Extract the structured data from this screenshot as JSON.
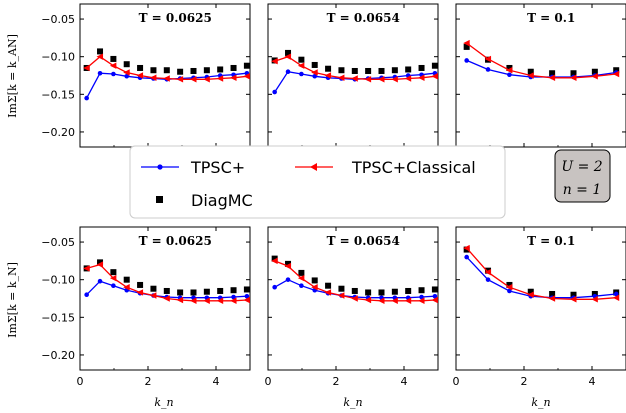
{
  "chart_data": {
    "type": "line",
    "x_shared": [
      0.196,
      0.589,
      0.982,
      1.374,
      1.767,
      2.16,
      2.553,
      2.945,
      3.338,
      3.731,
      4.123,
      4.516,
      4.909
    ],
    "x_coarse": [
      0.314,
      0.942,
      1.571,
      2.199,
      2.827,
      3.456,
      4.084,
      4.712
    ],
    "xlim": [
      0,
      5
    ],
    "ylim": [
      -0.22,
      -0.03
    ],
    "xticks": [
      "0",
      "2",
      "4"
    ],
    "yticks": [
      "−0.05",
      "−0.10",
      "−0.15",
      "−0.20"
    ],
    "ytick_values": [
      -0.05,
      -0.1,
      -0.15,
      -0.2
    ],
    "xlabel": "k_n",
    "ylabel_top": "ImΣ[k = k_AN]",
    "ylabel_bottom": "ImΣ[k = k_N]",
    "legend": {
      "tpsc": "TPSC+",
      "classical": "TPSC+Classical",
      "diagmc": "DiagMC"
    },
    "params": {
      "u": "U = 2",
      "n": "n = 1"
    },
    "panels": [
      {
        "row": "top",
        "title": "T = 0.0625",
        "grid": "shared",
        "tpsc": [
          -0.155,
          -0.122,
          -0.123,
          -0.126,
          -0.128,
          -0.129,
          -0.13,
          -0.129,
          -0.128,
          -0.127,
          -0.125,
          -0.124,
          -0.122
        ],
        "classical": [
          -0.115,
          -0.1,
          -0.112,
          -0.121,
          -0.125,
          -0.128,
          -0.129,
          -0.13,
          -0.13,
          -0.13,
          -0.129,
          -0.128,
          -0.126
        ],
        "diagmc": [
          -0.115,
          -0.093,
          -0.103,
          -0.11,
          -0.115,
          -0.118,
          -0.118,
          -0.12,
          -0.119,
          -0.118,
          -0.117,
          -0.115,
          -0.112
        ]
      },
      {
        "row": "top",
        "title": "T = 0.0654",
        "grid": "shared",
        "tpsc": [
          -0.147,
          -0.12,
          -0.123,
          -0.126,
          -0.128,
          -0.129,
          -0.13,
          -0.129,
          -0.128,
          -0.127,
          -0.125,
          -0.124,
          -0.122
        ],
        "classical": [
          -0.106,
          -0.1,
          -0.112,
          -0.121,
          -0.125,
          -0.128,
          -0.129,
          -0.13,
          -0.13,
          -0.13,
          -0.129,
          -0.128,
          -0.126
        ],
        "diagmc": [
          -0.105,
          -0.095,
          -0.104,
          -0.111,
          -0.116,
          -0.118,
          -0.119,
          -0.119,
          -0.119,
          -0.118,
          -0.117,
          -0.115,
          -0.112
        ]
      },
      {
        "row": "top",
        "title": "T = 0.1",
        "grid": "coarse",
        "tpsc": [
          -0.105,
          -0.117,
          -0.124,
          -0.127,
          -0.127,
          -0.127,
          -0.125,
          -0.121
        ],
        "classical": [
          -0.082,
          -0.103,
          -0.118,
          -0.125,
          -0.128,
          -0.128,
          -0.126,
          -0.123
        ],
        "diagmc": [
          -0.087,
          -0.104,
          -0.115,
          -0.12,
          -0.122,
          -0.122,
          -0.12,
          -0.118
        ]
      },
      {
        "row": "bottom",
        "title": "T = 0.0625",
        "grid": "shared",
        "tpsc": [
          -0.12,
          -0.102,
          -0.108,
          -0.114,
          -0.118,
          -0.121,
          -0.123,
          -0.124,
          -0.124,
          -0.124,
          -0.124,
          -0.123,
          -0.122
        ],
        "classical": [
          -0.085,
          -0.08,
          -0.098,
          -0.11,
          -0.117,
          -0.121,
          -0.125,
          -0.127,
          -0.128,
          -0.128,
          -0.128,
          -0.128,
          -0.127
        ],
        "diagmc": [
          -0.085,
          -0.077,
          -0.09,
          -0.1,
          -0.107,
          -0.112,
          -0.115,
          -0.117,
          -0.117,
          -0.116,
          -0.115,
          -0.114,
          -0.113
        ]
      },
      {
        "row": "bottom",
        "title": "T = 0.0654",
        "grid": "shared",
        "tpsc": [
          -0.11,
          -0.1,
          -0.108,
          -0.114,
          -0.118,
          -0.121,
          -0.123,
          -0.124,
          -0.124,
          -0.124,
          -0.124,
          -0.123,
          -0.122
        ],
        "classical": [
          -0.075,
          -0.082,
          -0.098,
          -0.11,
          -0.117,
          -0.121,
          -0.125,
          -0.127,
          -0.128,
          -0.128,
          -0.128,
          -0.128,
          -0.127
        ],
        "diagmc": [
          -0.072,
          -0.079,
          -0.091,
          -0.101,
          -0.108,
          -0.112,
          -0.115,
          -0.117,
          -0.117,
          -0.116,
          -0.115,
          -0.114,
          -0.113
        ]
      },
      {
        "row": "bottom",
        "title": "T = 0.1",
        "grid": "coarse",
        "tpsc": [
          -0.07,
          -0.1,
          -0.115,
          -0.122,
          -0.124,
          -0.124,
          -0.122,
          -0.119
        ],
        "classical": [
          -0.058,
          -0.09,
          -0.11,
          -0.12,
          -0.125,
          -0.126,
          -0.126,
          -0.124
        ],
        "diagmc": [
          -0.06,
          -0.088,
          -0.107,
          -0.116,
          -0.119,
          -0.12,
          -0.119,
          -0.117
        ]
      }
    ]
  },
  "colors": {
    "tpsc": "#0000ff",
    "classical": "#ff0000",
    "diagmc": "#000000",
    "param_box": "#c8c3c1"
  }
}
